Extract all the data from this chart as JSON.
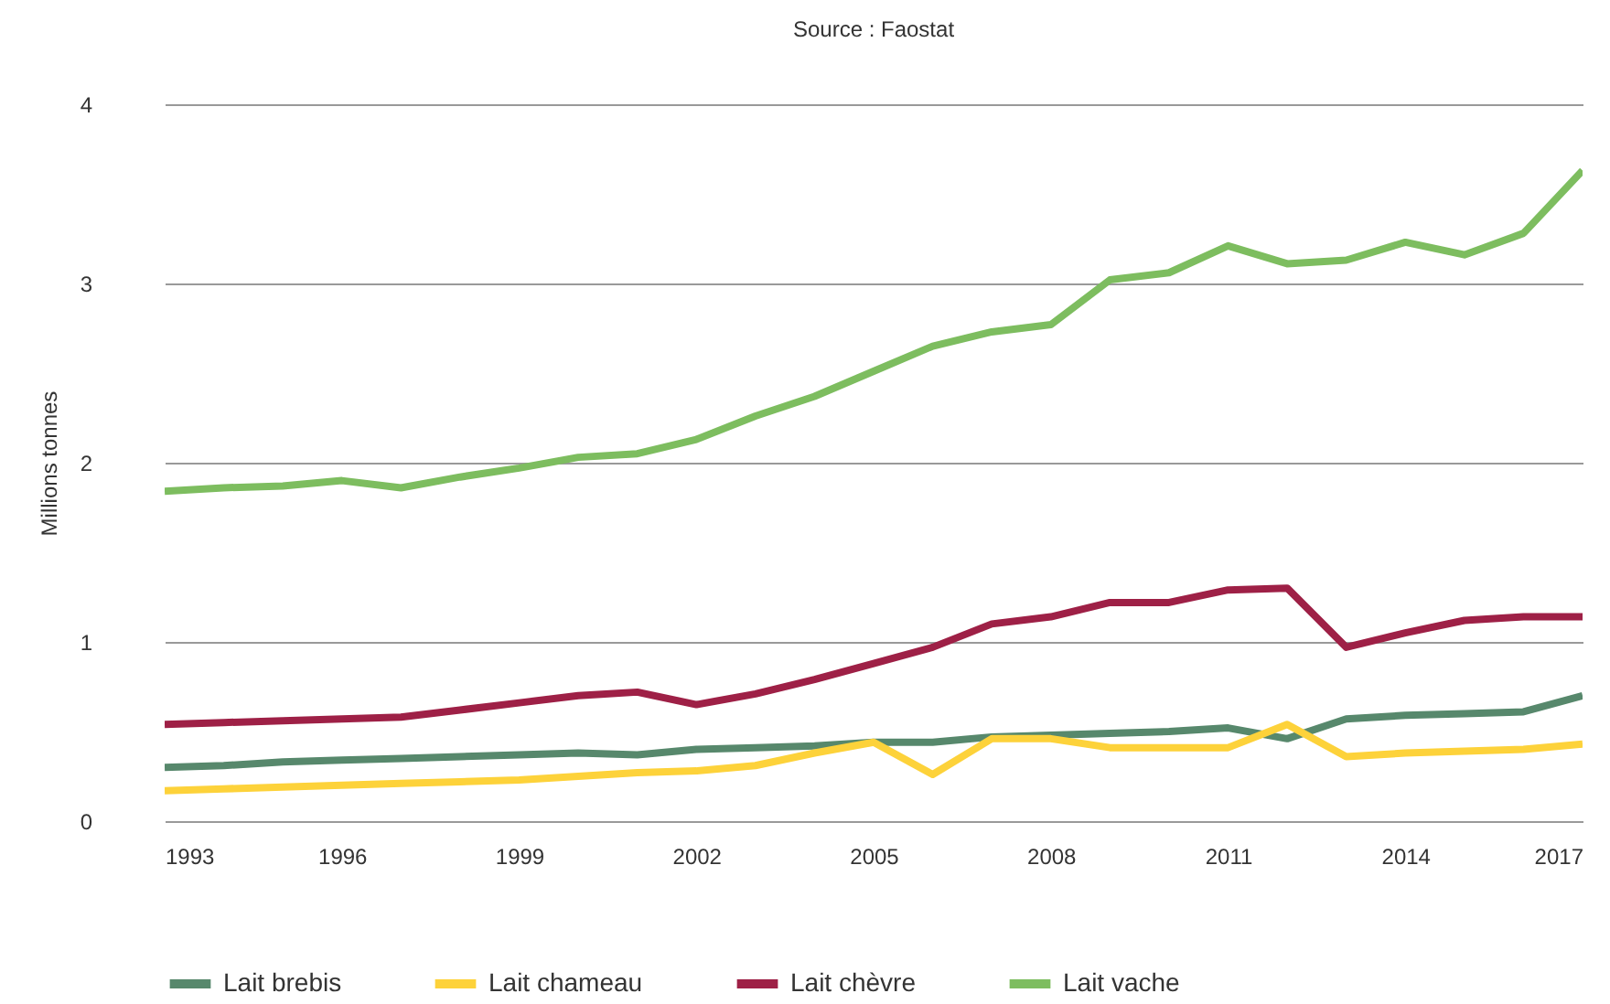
{
  "chart_data": {
    "type": "line",
    "annotations": [
      "Source : Faostat"
    ],
    "ylabel": "Millions tonnes",
    "x": [
      1993,
      1994,
      1995,
      1996,
      1997,
      1998,
      1999,
      2000,
      2001,
      2002,
      2003,
      2004,
      2005,
      2006,
      2007,
      2008,
      2009,
      2010,
      2011,
      2012,
      2013,
      2014,
      2015,
      2016,
      2017
    ],
    "series": [
      {
        "name": "Lait brebis",
        "color": "#57886c",
        "values": [
          0.3,
          0.31,
          0.33,
          0.34,
          0.35,
          0.36,
          0.37,
          0.38,
          0.37,
          0.4,
          0.41,
          0.42,
          0.44,
          0.44,
          0.47,
          0.48,
          0.49,
          0.5,
          0.52,
          0.46,
          0.57,
          0.59,
          0.6,
          0.61,
          0.7
        ]
      },
      {
        "name": "Lait chameau",
        "color": "#fdd23a",
        "values": [
          0.17,
          0.18,
          0.19,
          0.2,
          0.21,
          0.22,
          0.23,
          0.25,
          0.27,
          0.28,
          0.31,
          0.38,
          0.44,
          0.26,
          0.46,
          0.46,
          0.41,
          0.41,
          0.41,
          0.54,
          0.36,
          0.38,
          0.39,
          0.4,
          0.43
        ]
      },
      {
        "name": "Lait chèvre",
        "color": "#9e2046",
        "values": [
          0.54,
          0.55,
          0.56,
          0.57,
          0.58,
          0.62,
          0.66,
          0.7,
          0.72,
          0.65,
          0.71,
          0.79,
          0.88,
          0.97,
          1.1,
          1.14,
          1.22,
          1.22,
          1.29,
          1.3,
          0.97,
          1.05,
          1.12,
          1.14,
          1.14
        ]
      },
      {
        "name": "Lait vache",
        "color": "#7dbd5f",
        "values": [
          1.84,
          1.86,
          1.87,
          1.9,
          1.86,
          1.92,
          1.97,
          2.03,
          2.05,
          2.13,
          2.26,
          2.37,
          2.51,
          2.65,
          2.73,
          2.77,
          3.02,
          3.06,
          3.21,
          3.11,
          3.13,
          3.23,
          3.16,
          3.28,
          3.63
        ]
      }
    ],
    "xlim": [
      1993,
      2017
    ],
    "xticks": [
      1993,
      1996,
      1999,
      2002,
      2005,
      2008,
      2011,
      2014,
      2017
    ],
    "ylim": [
      0,
      4
    ],
    "yticks": [
      0,
      1,
      2,
      3,
      4
    ],
    "grid": "y",
    "legend": "bottom",
    "line_style": "solid",
    "marker": "none"
  }
}
